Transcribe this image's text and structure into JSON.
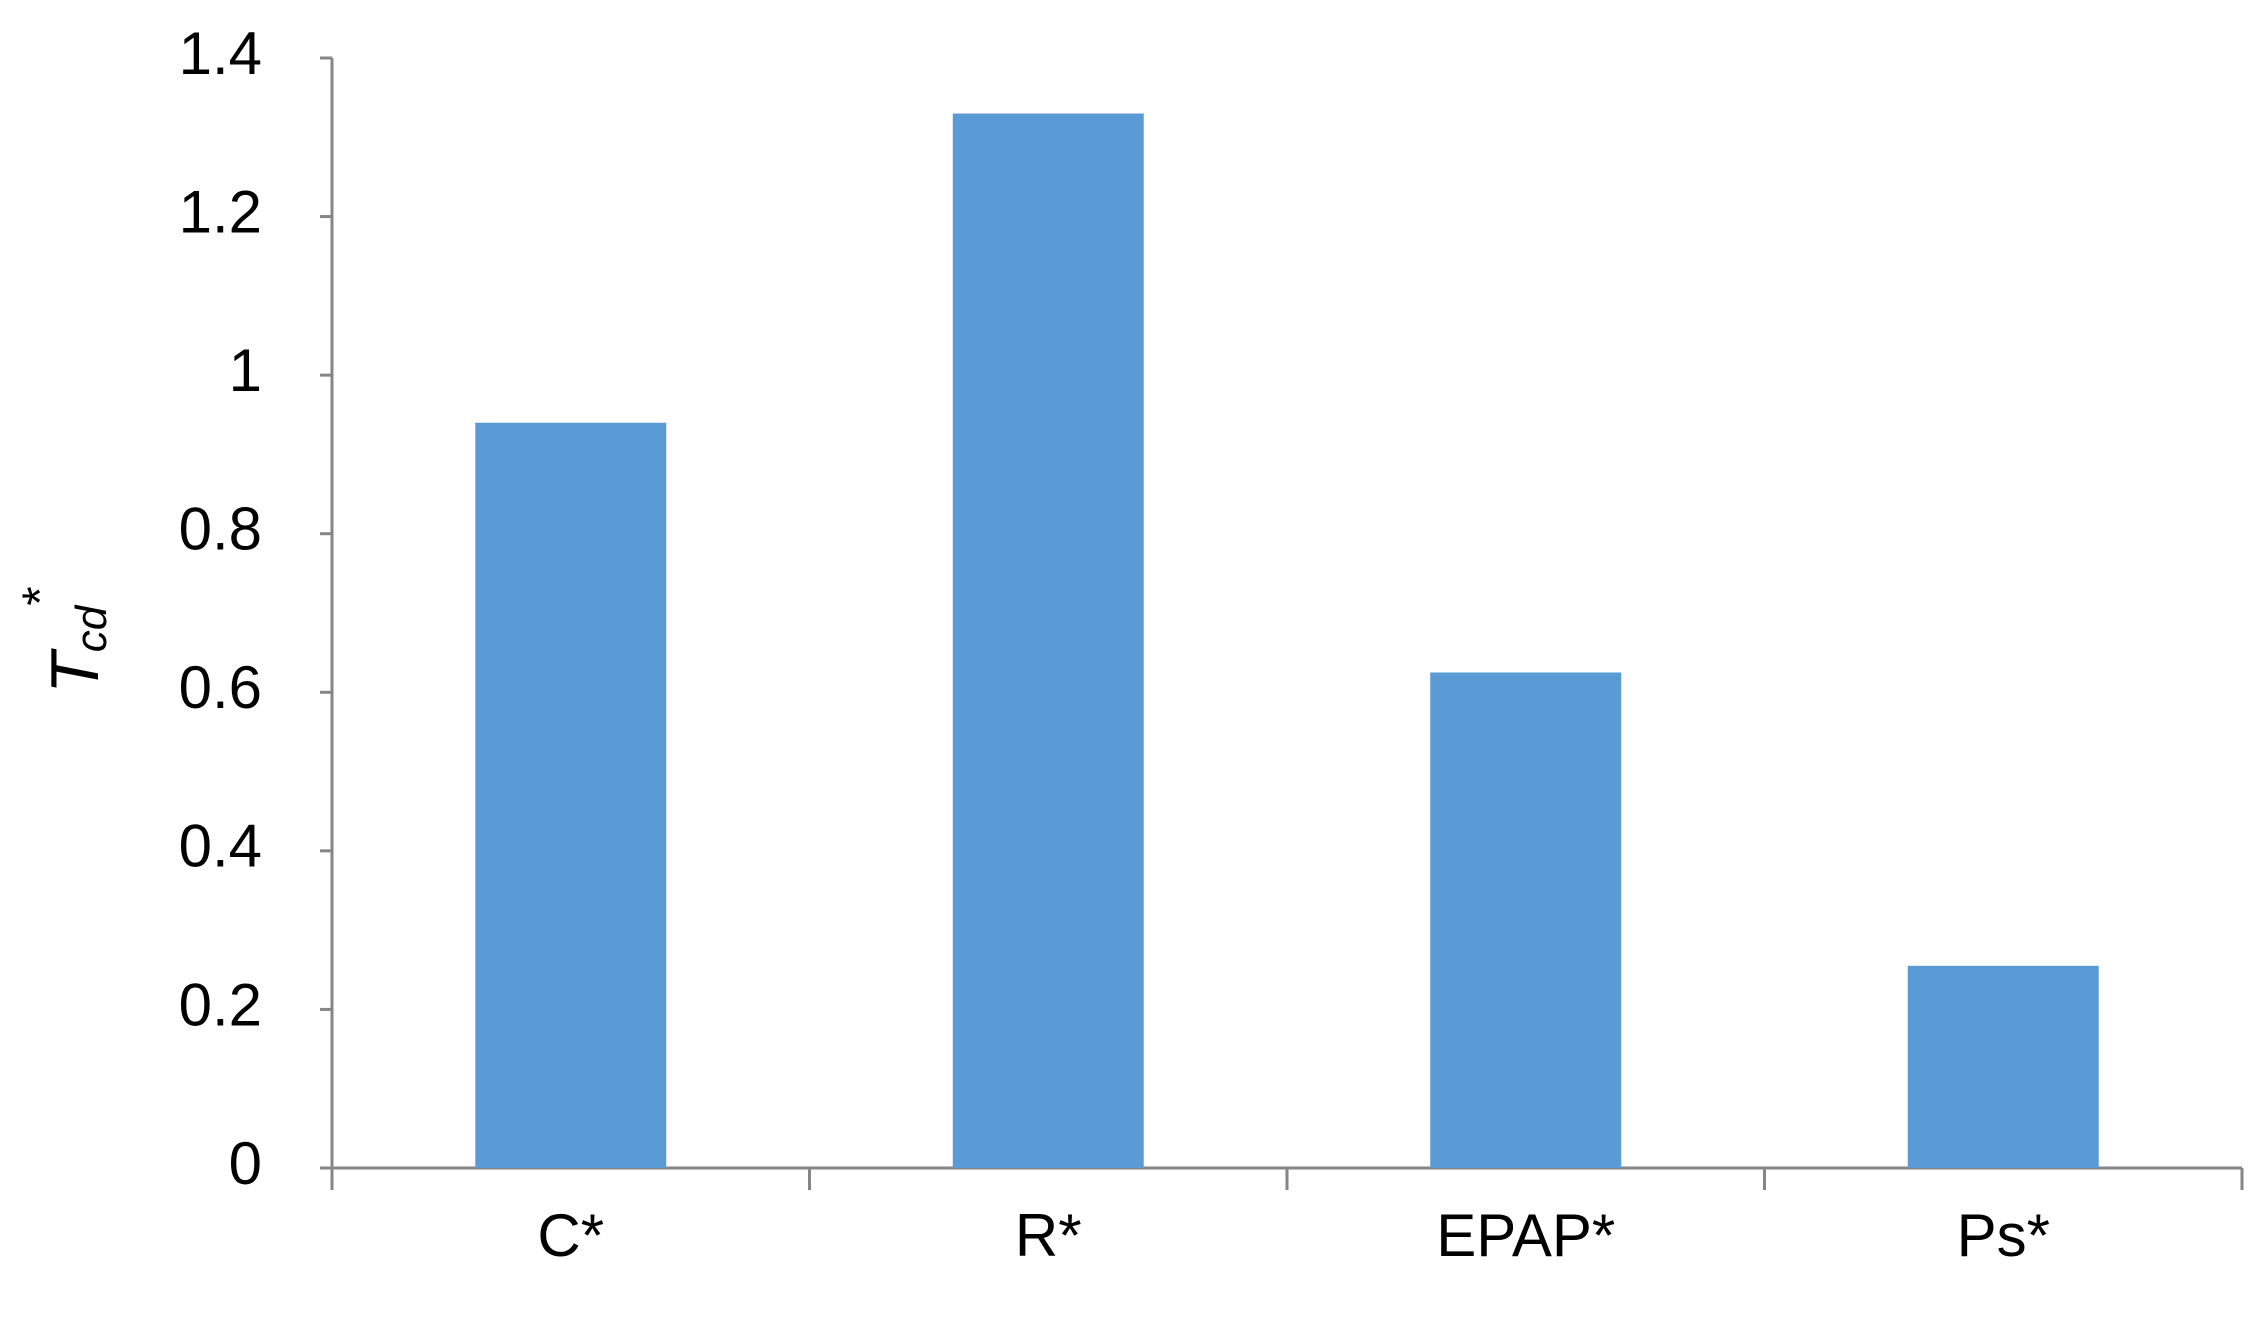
{
  "chart_data": {
    "type": "bar",
    "y_label": "T",
    "y_label_sub": "cd",
    "y_label_sup": "*",
    "categories": [
      "C*",
      "R*",
      "EPAP*",
      "Ps*"
    ],
    "values": [
      0.94,
      1.33,
      0.625,
      0.255
    ],
    "color": "#5b9bd5",
    "ylim": [
      0,
      1.4
    ],
    "yticks": [
      0,
      0.2,
      0.4,
      0.6,
      0.8,
      1,
      1.2,
      1.4
    ],
    "grid": false
  }
}
